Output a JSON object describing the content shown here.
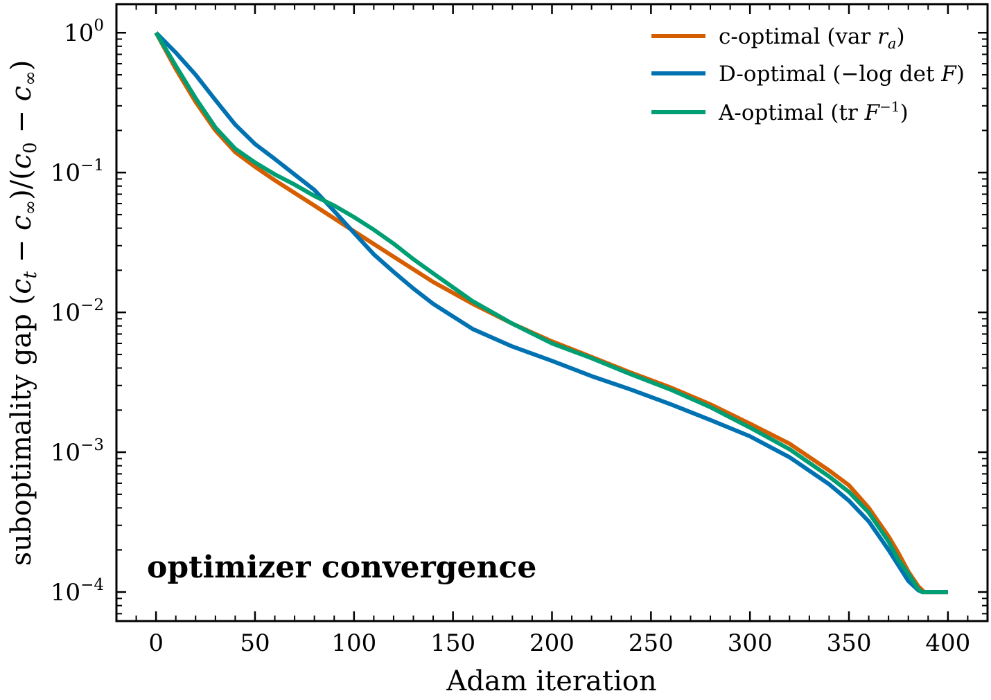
{
  "chart_data": {
    "type": "line",
    "title": "",
    "xlabel": "Adam iteration",
    "ylabel": "suboptimality gap  (c_t − c_∞)/(c_0 − c_∞)",
    "ylabel_parts": {
      "prefix": "suboptimality gap  (",
      "c1": "c",
      "sub1": "t",
      "minus1": " − ",
      "c2": "c",
      "sub2": "∞",
      "mid": ")/(",
      "c3": "c",
      "sub3": "0",
      "minus2": " − ",
      "c4": "c",
      "sub4": "∞",
      "suffix": ")"
    },
    "xlim": [
      -20,
      420
    ],
    "ylim": [
      6.2e-05,
      1.6
    ],
    "yscale": "log",
    "xticks": [
      0,
      50,
      100,
      150,
      200,
      250,
      300,
      350,
      400
    ],
    "yticks": [
      {
        "base": "10",
        "exp": "0",
        "value": 1
      },
      {
        "base": "10",
        "exp": "−1",
        "value": 0.1
      },
      {
        "base": "10",
        "exp": "−2",
        "value": 0.01
      },
      {
        "base": "10",
        "exp": "−3",
        "value": 0.001
      },
      {
        "base": "10",
        "exp": "−4",
        "value": 0.0001
      }
    ],
    "grid": false,
    "legend_position": "top-right",
    "annotation": "optimizer convergence",
    "series": [
      {
        "name": "c-optimal  (var r_a)",
        "legend_parts": {
          "main": "c-optimal  (var ",
          "var": "r",
          "sub": "a",
          "close": ")"
        },
        "color": "#d55e00",
        "x": [
          0,
          10,
          20,
          30,
          40,
          50,
          60,
          80,
          100,
          120,
          140,
          160,
          180,
          200,
          220,
          240,
          260,
          280,
          300,
          320,
          340,
          350,
          360,
          370,
          375,
          380,
          385,
          388,
          390,
          395,
          400
        ],
        "y": [
          1.0,
          0.55,
          0.32,
          0.2,
          0.14,
          0.11,
          0.088,
          0.058,
          0.038,
          0.025,
          0.0165,
          0.0115,
          0.0083,
          0.0062,
          0.0048,
          0.0037,
          0.0029,
          0.0022,
          0.0016,
          0.00115,
          0.00074,
          0.00058,
          0.0004,
          0.00025,
          0.00019,
          0.00014,
          0.00011,
          0.0001,
          0.0001,
          0.0001,
          0.0001
        ]
      },
      {
        "name": "D-optimal  (−log det F)",
        "legend_parts": {
          "main": "D-optimal  (",
          "math": "−log det ",
          "var": "F",
          "close": ")"
        },
        "color": "#0072b2",
        "x": [
          0,
          10,
          20,
          30,
          40,
          50,
          60,
          80,
          90,
          100,
          110,
          120,
          130,
          140,
          160,
          180,
          200,
          220,
          240,
          260,
          280,
          300,
          320,
          340,
          350,
          360,
          370,
          375,
          380,
          385,
          387,
          390,
          395,
          400
        ],
        "y": [
          1.0,
          0.72,
          0.5,
          0.33,
          0.22,
          0.16,
          0.125,
          0.075,
          0.053,
          0.037,
          0.026,
          0.0195,
          0.0148,
          0.0115,
          0.0076,
          0.0057,
          0.0045,
          0.0035,
          0.0028,
          0.0022,
          0.0017,
          0.0013,
          0.00092,
          0.00059,
          0.00045,
          0.00032,
          0.0002,
          0.000155,
          0.00012,
          0.000103,
          0.0001,
          0.0001,
          0.0001,
          0.0001
        ]
      },
      {
        "name": "A-optimal  (tr F^−1)",
        "legend_parts": {
          "main": "A-optimal  (tr ",
          "var": "F",
          "sup": "−1",
          "close": ")"
        },
        "color": "#009e73",
        "x": [
          0,
          10,
          20,
          30,
          40,
          50,
          60,
          70,
          80,
          90,
          100,
          110,
          120,
          130,
          140,
          160,
          180,
          200,
          220,
          240,
          260,
          280,
          300,
          320,
          340,
          350,
          360,
          370,
          375,
          380,
          385,
          387,
          390,
          395,
          400
        ],
        "y": [
          1.0,
          0.58,
          0.34,
          0.21,
          0.148,
          0.118,
          0.097,
          0.082,
          0.068,
          0.058,
          0.048,
          0.039,
          0.031,
          0.024,
          0.019,
          0.012,
          0.0083,
          0.006,
          0.0047,
          0.0036,
          0.0028,
          0.0021,
          0.0015,
          0.00105,
          0.00067,
          0.00052,
          0.00037,
          0.00023,
          0.00017,
          0.000135,
          0.000105,
          0.0001,
          0.0001,
          0.0001,
          0.0001
        ]
      }
    ]
  }
}
